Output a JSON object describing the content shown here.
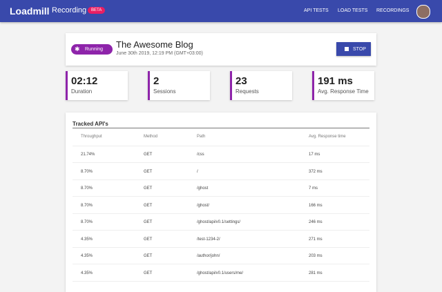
{
  "header": {
    "logo": "Loadmill",
    "section": "Recording",
    "badge": "BETA",
    "nav": [
      "API TESTS",
      "LOAD TESTS",
      "RECORDINGS"
    ]
  },
  "recording": {
    "status": "Running",
    "title": "The Awesome Blog",
    "date": "June 30th 2019, 12:19 PM (GMT+03:00)",
    "button": "STOP"
  },
  "stats": [
    {
      "value": "02:12",
      "label": "Duration"
    },
    {
      "value": "2",
      "label": "Sessions"
    },
    {
      "value": "23",
      "label": "Requests"
    },
    {
      "value": "191 ms",
      "label": "Avg. Response Time"
    }
  ],
  "table": {
    "title": "Tracked API's",
    "columns": [
      "Throughput",
      "Method",
      "Path",
      "Avg. Response time"
    ],
    "rows": [
      [
        "21.74%",
        "GET",
        "/css",
        "17 ms"
      ],
      [
        "8.70%",
        "GET",
        "/",
        "372 ms"
      ],
      [
        "8.70%",
        "GET",
        "/ghost",
        "7 ms"
      ],
      [
        "8.70%",
        "GET",
        "/ghost/",
        "166 ms"
      ],
      [
        "8.70%",
        "GET",
        "/ghost/api/v0.1/settings/",
        "246 ms"
      ],
      [
        "4.35%",
        "GET",
        "/test-1234-2/",
        "271 ms"
      ],
      [
        "4.35%",
        "GET",
        "/author/john/",
        "203 ms"
      ],
      [
        "4.35%",
        "GET",
        "/ghost/api/v0.1/users/me/",
        "281 ms"
      ]
    ]
  }
}
